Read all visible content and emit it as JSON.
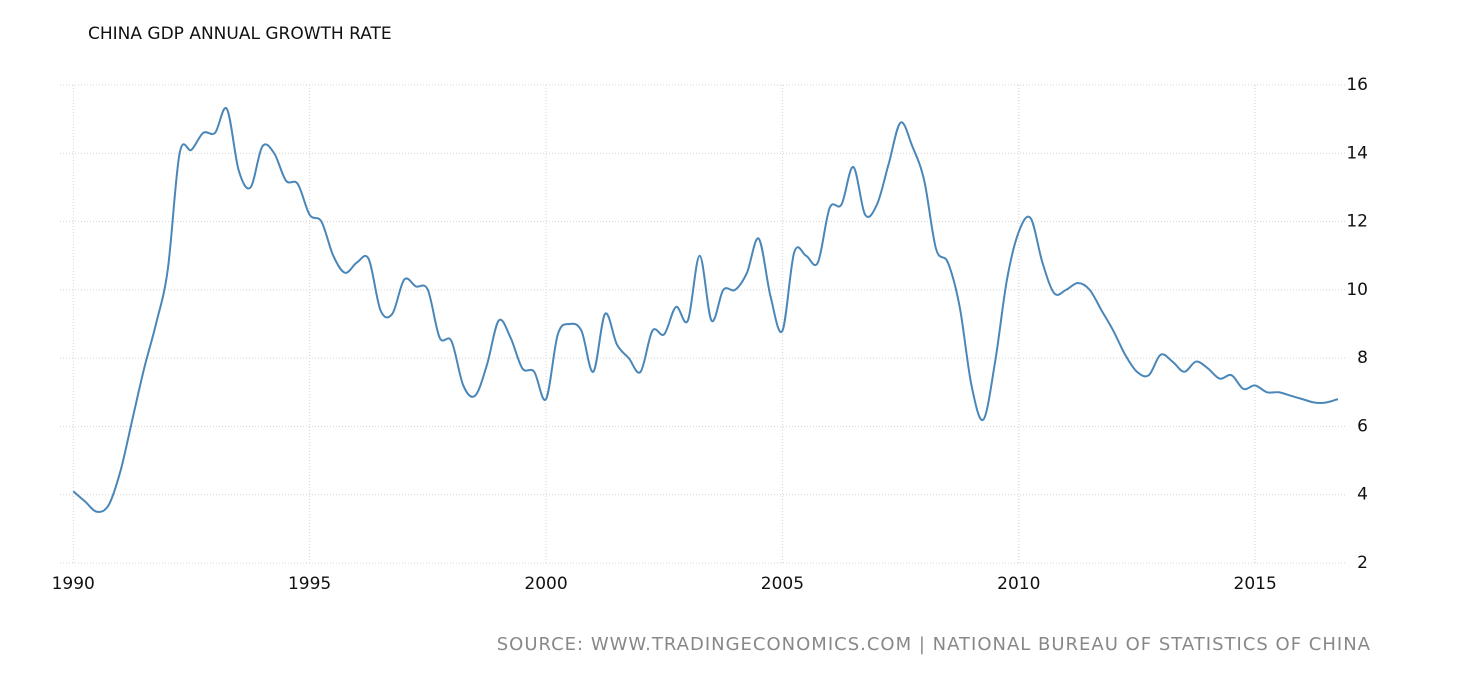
{
  "chart_data": {
    "type": "line",
    "title": "CHINA GDP ANNUAL GROWTH RATE",
    "source": "SOURCE: WWW.TRADINGECONOMICS.COM | NATIONAL BUREAU OF STATISTICS OF CHINA",
    "x": [
      1990,
      1990.25,
      1990.5,
      1990.75,
      1991,
      1991.25,
      1991.5,
      1991.75,
      1992,
      1992.25,
      1992.5,
      1992.75,
      1993,
      1993.25,
      1993.5,
      1993.75,
      1994,
      1994.25,
      1994.5,
      1994.75,
      1995,
      1995.25,
      1995.5,
      1995.75,
      1996,
      1996.25,
      1996.5,
      1996.75,
      1997,
      1997.25,
      1997.5,
      1997.75,
      1998,
      1998.25,
      1998.5,
      1998.75,
      1999,
      1999.25,
      1999.5,
      1999.75,
      2000,
      2000.25,
      2000.5,
      2000.75,
      2001,
      2001.25,
      2001.5,
      2001.75,
      2002,
      2002.25,
      2002.5,
      2002.75,
      2003,
      2003.25,
      2003.5,
      2003.75,
      2004,
      2004.25,
      2004.5,
      2004.75,
      2005,
      2005.25,
      2005.5,
      2005.75,
      2006,
      2006.25,
      2006.5,
      2006.75,
      2007,
      2007.25,
      2007.5,
      2007.75,
      2008,
      2008.25,
      2008.5,
      2008.75,
      2009,
      2009.25,
      2009.5,
      2009.75,
      2010,
      2010.25,
      2010.5,
      2010.75,
      2011,
      2011.25,
      2011.5,
      2011.75,
      2012,
      2012.25,
      2012.5,
      2012.75,
      2013,
      2013.25,
      2013.5,
      2013.75,
      2014,
      2014.25,
      2014.5,
      2014.75,
      2015,
      2015.25,
      2015.5,
      2015.75,
      2016,
      2016.25,
      2016.5,
      2016.75
    ],
    "series": [
      {
        "color": "#4a87b8",
        "values": [
          4.1,
          3.8,
          3.5,
          3.7,
          4.7,
          6.2,
          7.7,
          9.0,
          10.6,
          14.0,
          14.1,
          14.6,
          14.6,
          15.3,
          13.5,
          13.0,
          14.2,
          14.0,
          13.2,
          13.1,
          12.2,
          12.0,
          11.0,
          10.5,
          10.8,
          10.9,
          9.4,
          9.3,
          10.3,
          10.1,
          10.0,
          8.6,
          8.5,
          7.2,
          6.9,
          7.8,
          9.1,
          8.6,
          7.7,
          7.6,
          6.8,
          8.7,
          9.0,
          8.8,
          7.6,
          9.3,
          8.4,
          8.0,
          7.6,
          8.8,
          8.7,
          9.5,
          9.1,
          11.0,
          9.1,
          10.0,
          10.0,
          10.5,
          11.5,
          9.8,
          8.8,
          11.1,
          11.0,
          10.8,
          12.4,
          12.5,
          13.6,
          12.2,
          12.5,
          13.7,
          14.9,
          14.2,
          13.2,
          11.2,
          10.8,
          9.5,
          7.2,
          6.2,
          7.9,
          10.3,
          11.7,
          12.1,
          10.8,
          9.9,
          10.0,
          10.2,
          10.0,
          9.4,
          8.8,
          8.1,
          7.6,
          7.5,
          8.1,
          7.9,
          7.6,
          7.9,
          7.7,
          7.4,
          7.5,
          7.1,
          7.2,
          7.0,
          7.0,
          6.9,
          6.8,
          6.7,
          6.7,
          6.8
        ]
      }
    ],
    "xlim": [
      1989.72,
      2016.9
    ],
    "xticks": [
      1990,
      1995,
      2000,
      2005,
      2010,
      2015
    ],
    "ylim": [
      2,
      16
    ],
    "yticks": [
      2,
      4,
      6,
      8,
      10,
      12,
      14,
      16
    ],
    "grid": true
  }
}
